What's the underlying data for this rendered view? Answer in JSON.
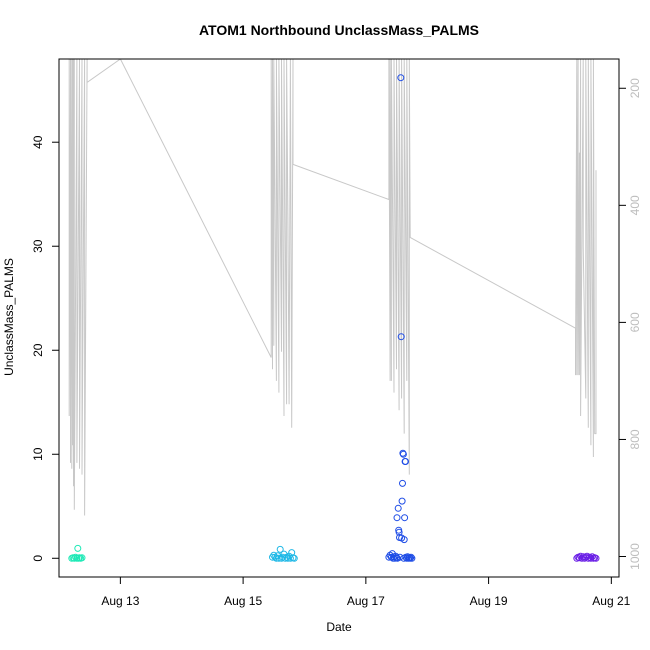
{
  "chart_data": {
    "type": "scatter",
    "title": "ATOM1 Northbound UnclassMass_PALMS",
    "xlabel": "Date",
    "ylabel": "UnclassMass_PALMS",
    "xlim": [
      "2016-08-12 00:00",
      "2016-08-21 03:00"
    ],
    "ylim": [
      -1.8,
      48
    ],
    "x_ticks": [
      "Aug 13",
      "Aug 15",
      "Aug 17",
      "Aug 19",
      "Aug 21"
    ],
    "y_ticks": [
      0,
      10,
      20,
      30,
      40
    ],
    "y2_ticks": [
      200,
      400,
      600,
      800,
      1000
    ],
    "y2_lim": [
      1035,
      150
    ],
    "series": [
      {
        "color": "#1de9b6",
        "points": [
          [
            "2016-08-12 05:00",
            0.0
          ],
          [
            "2016-08-12 05:30",
            0.05
          ],
          [
            "2016-08-12 06:00",
            0.0
          ],
          [
            "2016-08-12 06:30",
            0.1
          ],
          [
            "2016-08-12 07:00",
            0.0
          ],
          [
            "2016-08-12 07:20",
            0.95
          ],
          [
            "2016-08-12 07:40",
            0.0
          ],
          [
            "2016-08-12 08:00",
            0.05
          ],
          [
            "2016-08-12 08:30",
            0.0
          ],
          [
            "2016-08-12 09:00",
            0.05
          ]
        ]
      },
      {
        "color": "#1fb8e6",
        "points": [
          [
            "2016-08-15 11:30",
            0.1
          ],
          [
            "2016-08-15 12:00",
            0.3
          ],
          [
            "2016-08-15 12:30",
            0.1
          ],
          [
            "2016-08-15 13:00",
            0.0
          ],
          [
            "2016-08-15 13:30",
            0.25
          ],
          [
            "2016-08-15 14:00",
            0.0
          ],
          [
            "2016-08-15 14:30",
            0.85
          ],
          [
            "2016-08-15 15:00",
            0.0
          ],
          [
            "2016-08-15 15:30",
            0.1
          ],
          [
            "2016-08-15 16:00",
            0.4
          ],
          [
            "2016-08-15 16:30",
            0.0
          ],
          [
            "2016-08-15 17:00",
            0.1
          ],
          [
            "2016-08-15 17:30",
            0.0
          ],
          [
            "2016-08-15 18:00",
            0.2
          ],
          [
            "2016-08-15 18:30",
            0.0
          ],
          [
            "2016-08-15 19:00",
            0.55
          ],
          [
            "2016-08-15 19:30",
            0.05
          ],
          [
            "2016-08-15 20:00",
            0.0
          ]
        ]
      },
      {
        "color": "#1f4de6",
        "points": [
          [
            "2016-08-17 09:00",
            0.1
          ],
          [
            "2016-08-17 09:30",
            0.3
          ],
          [
            "2016-08-17 10:00",
            0.1
          ],
          [
            "2016-08-17 10:20",
            0.45
          ],
          [
            "2016-08-17 10:40",
            0.0
          ],
          [
            "2016-08-17 11:00",
            0.15
          ],
          [
            "2016-08-17 11:20",
            0.0
          ],
          [
            "2016-08-17 11:40",
            0.2
          ],
          [
            "2016-08-17 12:00",
            0.05
          ],
          [
            "2016-08-17 12:10",
            3.9
          ],
          [
            "2016-08-17 12:20",
            0.0
          ],
          [
            "2016-08-17 12:40",
            4.8
          ],
          [
            "2016-08-17 12:50",
            2.7
          ],
          [
            "2016-08-17 13:00",
            2.5
          ],
          [
            "2016-08-17 13:10",
            2.0
          ],
          [
            "2016-08-17 13:20",
            0.1
          ],
          [
            "2016-08-17 13:40",
            46.2
          ],
          [
            "2016-08-17 13:50",
            21.3
          ],
          [
            "2016-08-17 14:00",
            1.95
          ],
          [
            "2016-08-17 14:10",
            5.5
          ],
          [
            "2016-08-17 14:20",
            7.2
          ],
          [
            "2016-08-17 14:30",
            10.1
          ],
          [
            "2016-08-17 14:40",
            10.0
          ],
          [
            "2016-08-17 14:50",
            0.0
          ],
          [
            "2016-08-17 15:00",
            1.8
          ],
          [
            "2016-08-17 15:10",
            3.9
          ],
          [
            "2016-08-17 15:20",
            9.3
          ],
          [
            "2016-08-17 15:30",
            9.3
          ],
          [
            "2016-08-17 15:40",
            0.1
          ],
          [
            "2016-08-17 16:00",
            0.0
          ],
          [
            "2016-08-17 16:20",
            0.15
          ],
          [
            "2016-08-17 16:40",
            0.0
          ],
          [
            "2016-08-17 17:00",
            0.05
          ],
          [
            "2016-08-17 17:20",
            0.0
          ],
          [
            "2016-08-17 17:40",
            0.1
          ],
          [
            "2016-08-17 18:00",
            0.0
          ]
        ]
      },
      {
        "color": "#6a1fe6",
        "points": [
          [
            "2016-08-20 10:30",
            0.0
          ],
          [
            "2016-08-20 11:00",
            0.1
          ],
          [
            "2016-08-20 11:30",
            0.05
          ],
          [
            "2016-08-20 12:00",
            0.2
          ],
          [
            "2016-08-20 12:30",
            0.0
          ],
          [
            "2016-08-20 13:00",
            0.15
          ],
          [
            "2016-08-20 13:30",
            0.0
          ],
          [
            "2016-08-20 14:00",
            0.1
          ],
          [
            "2016-08-20 14:30",
            0.2
          ],
          [
            "2016-08-20 15:00",
            0.0
          ],
          [
            "2016-08-20 15:30",
            0.1
          ],
          [
            "2016-08-20 16:00",
            0.0
          ],
          [
            "2016-08-20 16:30",
            0.15
          ],
          [
            "2016-08-20 17:00",
            0.0
          ],
          [
            "2016-08-20 17:30",
            0.05
          ],
          [
            "2016-08-20 18:00",
            0.0
          ]
        ]
      }
    ],
    "pressure_trace": {
      "color": "#c8c8c8",
      "axis": "right",
      "points": [
        [
          "2016-08-12 04:00",
          150
        ],
        [
          "2016-08-12 04:00",
          760
        ],
        [
          "2016-08-12 04:30",
          150
        ],
        [
          "2016-08-12 04:30",
          840
        ],
        [
          "2016-08-12 05:00",
          150
        ],
        [
          "2016-08-12 05:00",
          850
        ],
        [
          "2016-08-12 05:20",
          150
        ],
        [
          "2016-08-12 05:20",
          810
        ],
        [
          "2016-08-12 05:40",
          150
        ],
        [
          "2016-08-12 05:40",
          880
        ],
        [
          "2016-08-12 06:00",
          150
        ],
        [
          "2016-08-12 06:00",
          920
        ],
        [
          "2016-08-12 07:00",
          150
        ],
        [
          "2016-08-12 07:00",
          840
        ],
        [
          "2016-08-12 08:00",
          150
        ],
        [
          "2016-08-12 08:00",
          850
        ],
        [
          "2016-08-12 09:00",
          150
        ],
        [
          "2016-08-12 09:00",
          860
        ],
        [
          "2016-08-12 10:00",
          150
        ],
        [
          "2016-08-12 10:00",
          930
        ],
        [
          "2016-08-12 11:00",
          150
        ],
        [
          "2016-08-12 11:00",
          190
        ],
        [
          "2016-08-13 00:00",
          150
        ],
        [
          "2016-08-15 11:00",
          660
        ],
        [
          "2016-08-15 11:00",
          150
        ],
        [
          "2016-08-15 11:30",
          680
        ],
        [
          "2016-08-15 11:30",
          150
        ],
        [
          "2016-08-15 12:00",
          640
        ],
        [
          "2016-08-15 12:00",
          150
        ],
        [
          "2016-08-15 13:00",
          700
        ],
        [
          "2016-08-15 13:00",
          150
        ],
        [
          "2016-08-15 14:00",
          720
        ],
        [
          "2016-08-15 14:00",
          150
        ],
        [
          "2016-08-15 15:00",
          650
        ],
        [
          "2016-08-15 15:00",
          150
        ],
        [
          "2016-08-15 16:00",
          760
        ],
        [
          "2016-08-15 16:00",
          150
        ],
        [
          "2016-08-15 17:00",
          740
        ],
        [
          "2016-08-15 17:00",
          150
        ],
        [
          "2016-08-15 17:30",
          420
        ],
        [
          "2016-08-15 18:00",
          740
        ],
        [
          "2016-08-15 18:30",
          150
        ],
        [
          "2016-08-15 19:00",
          780
        ],
        [
          "2016-08-15 19:30",
          150
        ],
        [
          "2016-08-15 19:30",
          330
        ],
        [
          "2016-08-17 09:00",
          390
        ],
        [
          "2016-08-17 09:00",
          150
        ],
        [
          "2016-08-17 09:30",
          700
        ],
        [
          "2016-08-17 09:30",
          150
        ],
        [
          "2016-08-17 10:00",
          700
        ],
        [
          "2016-08-17 10:00",
          150
        ],
        [
          "2016-08-17 11:00",
          720
        ],
        [
          "2016-08-17 11:00",
          150
        ],
        [
          "2016-08-17 12:00",
          680
        ],
        [
          "2016-08-17 12:00",
          150
        ],
        [
          "2016-08-17 13:00",
          750
        ],
        [
          "2016-08-17 13:00",
          150
        ],
        [
          "2016-08-17 14:00",
          730
        ],
        [
          "2016-08-17 14:00",
          150
        ],
        [
          "2016-08-17 15:00",
          790
        ],
        [
          "2016-08-17 15:00",
          150
        ],
        [
          "2016-08-17 16:00",
          700
        ],
        [
          "2016-08-17 16:00",
          150
        ],
        [
          "2016-08-17 17:00",
          860
        ],
        [
          "2016-08-17 17:00",
          150
        ],
        [
          "2016-08-17 17:20",
          455
        ],
        [
          "2016-08-20 10:00",
          610
        ],
        [
          "2016-08-20 10:00",
          690
        ],
        [
          "2016-08-20 10:30",
          150
        ],
        [
          "2016-08-20 10:30",
          690
        ],
        [
          "2016-08-20 11:00",
          150
        ],
        [
          "2016-08-20 11:00",
          690
        ],
        [
          "2016-08-20 11:30",
          310
        ],
        [
          "2016-08-20 11:30",
          690
        ],
        [
          "2016-08-20 12:00",
          150
        ],
        [
          "2016-08-20 12:00",
          760
        ],
        [
          "2016-08-20 13:00",
          150
        ],
        [
          "2016-08-20 13:00",
          470
        ],
        [
          "2016-08-20 14:00",
          730
        ],
        [
          "2016-08-20 14:00",
          150
        ],
        [
          "2016-08-20 15:00",
          780
        ],
        [
          "2016-08-20 15:00",
          150
        ],
        [
          "2016-08-20 16:00",
          810
        ],
        [
          "2016-08-20 16:00",
          150
        ],
        [
          "2016-08-20 17:00",
          830
        ],
        [
          "2016-08-20 17:00",
          150
        ],
        [
          "2016-08-20 17:30",
          790
        ],
        [
          "2016-08-20 18:00",
          790
        ],
        [
          "2016-08-20 18:00",
          340
        ]
      ]
    }
  }
}
